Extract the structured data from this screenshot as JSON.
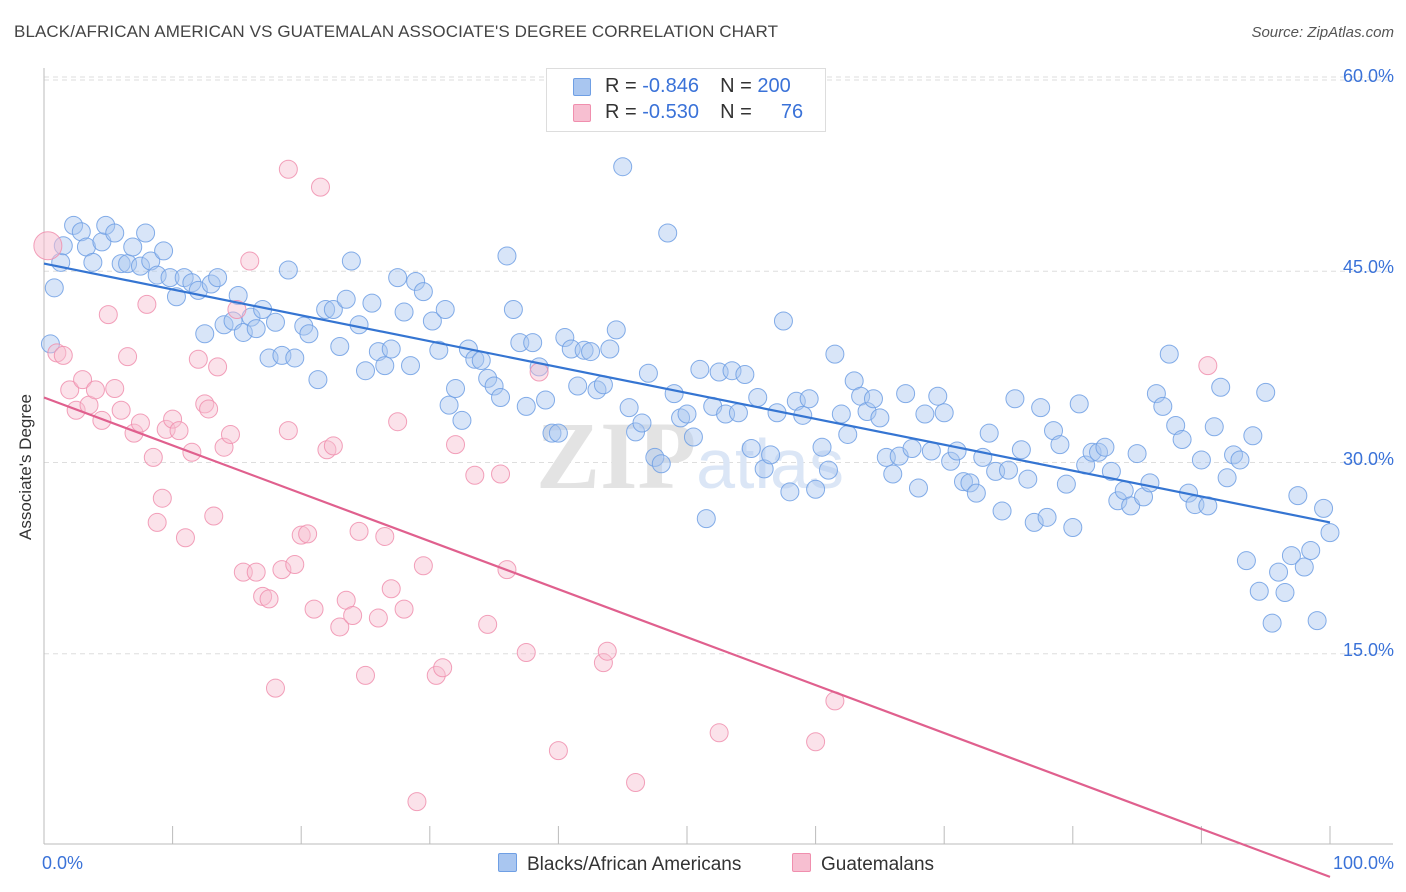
{
  "chart_data": {
    "type": "scatter",
    "title": "BLACK/AFRICAN AMERICAN VS GUATEMALAN ASSOCIATE'S DEGREE CORRELATION CHART",
    "source": "Source: ZipAtlas.com",
    "xlabel": "",
    "ylabel": "Associate's Degree",
    "xlim": [
      0,
      100
    ],
    "ylim": [
      0,
      65
    ],
    "x_tick_labels": [
      "0.0%",
      "100.0%"
    ],
    "y_ticks": [
      15,
      30,
      45,
      60
    ],
    "y_tick_labels": [
      "15.0%",
      "30.0%",
      "45.0%",
      "60.0%"
    ],
    "grid": true,
    "watermark": "ZIPatlas",
    "legend_stats": [
      {
        "r_label": "R =",
        "r_value": "-0.846",
        "n_label": "N =",
        "n_value": "200"
      },
      {
        "r_label": "R =",
        "r_value": "-0.530",
        "n_label": "N =",
        "n_value": "76"
      }
    ],
    "series": [
      {
        "name": "Blacks/African Americans",
        "color": "#6f9fe4",
        "fill": "#a9c6f0",
        "line_color": "#3575d2",
        "trend": [
          [
            0,
            45.6
          ],
          [
            100,
            25.3
          ]
        ],
        "points": [
          [
            0.5,
            39.3
          ],
          [
            0.8,
            43.7
          ],
          [
            1.3,
            45.7
          ],
          [
            1.5,
            47.0
          ],
          [
            2.3,
            48.6
          ],
          [
            2.9,
            48.1
          ],
          [
            3.3,
            46.9
          ],
          [
            3.8,
            45.7
          ],
          [
            4.5,
            47.3
          ],
          [
            4.8,
            48.6
          ],
          [
            5.5,
            48.0
          ],
          [
            6.0,
            45.6
          ],
          [
            6.5,
            45.6
          ],
          [
            6.9,
            46.9
          ],
          [
            7.5,
            45.4
          ],
          [
            7.9,
            48.0
          ],
          [
            8.3,
            45.8
          ],
          [
            8.8,
            44.7
          ],
          [
            9.3,
            46.6
          ],
          [
            9.8,
            44.5
          ],
          [
            10.3,
            43.0
          ],
          [
            10.9,
            44.5
          ],
          [
            11.5,
            44.1
          ],
          [
            12.0,
            43.5
          ],
          [
            12.5,
            40.1
          ],
          [
            13.0,
            44.0
          ],
          [
            13.5,
            44.5
          ],
          [
            14.0,
            40.8
          ],
          [
            14.7,
            41.1
          ],
          [
            15.1,
            43.1
          ],
          [
            15.5,
            40.2
          ],
          [
            16.1,
            41.4
          ],
          [
            16.5,
            40.5
          ],
          [
            17.0,
            42.0
          ],
          [
            17.5,
            38.2
          ],
          [
            18.0,
            41.0
          ],
          [
            18.5,
            38.4
          ],
          [
            19.0,
            45.1
          ],
          [
            19.5,
            38.2
          ],
          [
            20.2,
            40.7
          ],
          [
            20.6,
            40.1
          ],
          [
            21.3,
            36.5
          ],
          [
            21.9,
            42.0
          ],
          [
            22.5,
            42.0
          ],
          [
            23.0,
            39.1
          ],
          [
            23.5,
            42.8
          ],
          [
            23.9,
            45.8
          ],
          [
            24.5,
            40.8
          ],
          [
            25.0,
            37.2
          ],
          [
            25.5,
            42.5
          ],
          [
            26.0,
            38.7
          ],
          [
            26.5,
            37.6
          ],
          [
            27.0,
            38.9
          ],
          [
            27.5,
            44.5
          ],
          [
            28.0,
            41.8
          ],
          [
            28.5,
            37.6
          ],
          [
            28.9,
            44.2
          ],
          [
            29.5,
            43.4
          ],
          [
            30.2,
            41.1
          ],
          [
            30.7,
            38.8
          ],
          [
            31.2,
            42.0
          ],
          [
            31.5,
            34.5
          ],
          [
            32.0,
            35.8
          ],
          [
            32.5,
            33.3
          ],
          [
            33.0,
            38.9
          ],
          [
            33.5,
            38.1
          ],
          [
            34.0,
            38.0
          ],
          [
            34.5,
            36.6
          ],
          [
            35.0,
            36.0
          ],
          [
            35.5,
            35.1
          ],
          [
            36.0,
            46.2
          ],
          [
            36.5,
            42.0
          ],
          [
            37.0,
            39.4
          ],
          [
            37.5,
            34.4
          ],
          [
            38.0,
            39.4
          ],
          [
            38.5,
            37.5
          ],
          [
            39.0,
            34.9
          ],
          [
            39.5,
            32.3
          ],
          [
            40.0,
            32.3
          ],
          [
            40.5,
            39.8
          ],
          [
            41.0,
            38.9
          ],
          [
            41.5,
            36.0
          ],
          [
            42.0,
            38.8
          ],
          [
            42.5,
            38.7
          ],
          [
            43.0,
            35.7
          ],
          [
            43.5,
            36.1
          ],
          [
            44.0,
            38.9
          ],
          [
            44.5,
            40.4
          ],
          [
            45.0,
            53.2
          ],
          [
            45.5,
            34.3
          ],
          [
            46.0,
            32.4
          ],
          [
            46.5,
            33.1
          ],
          [
            47.0,
            37.0
          ],
          [
            47.5,
            30.4
          ],
          [
            48.0,
            29.9
          ],
          [
            48.5,
            48.0
          ],
          [
            49.0,
            35.4
          ],
          [
            49.5,
            33.5
          ],
          [
            50.0,
            33.8
          ],
          [
            50.5,
            32.0
          ],
          [
            51.0,
            37.3
          ],
          [
            51.5,
            25.6
          ],
          [
            52.0,
            34.4
          ],
          [
            52.5,
            37.1
          ],
          [
            53.0,
            33.8
          ],
          [
            53.5,
            37.2
          ],
          [
            54.0,
            33.9
          ],
          [
            54.5,
            36.9
          ],
          [
            55.0,
            31.1
          ],
          [
            55.5,
            35.1
          ],
          [
            56.0,
            29.5
          ],
          [
            56.5,
            30.6
          ],
          [
            57.0,
            33.9
          ],
          [
            57.5,
            41.1
          ],
          [
            58.0,
            27.7
          ],
          [
            58.5,
            34.8
          ],
          [
            59.0,
            33.7
          ],
          [
            59.5,
            35.0
          ],
          [
            60.0,
            27.9
          ],
          [
            60.5,
            31.2
          ],
          [
            61.0,
            29.4
          ],
          [
            61.5,
            38.5
          ],
          [
            62.0,
            33.8
          ],
          [
            62.5,
            32.2
          ],
          [
            63.0,
            36.4
          ],
          [
            63.5,
            35.2
          ],
          [
            64.0,
            34.0
          ],
          [
            64.5,
            35.0
          ],
          [
            65.0,
            33.5
          ],
          [
            65.5,
            30.4
          ],
          [
            66.0,
            29.1
          ],
          [
            66.5,
            30.5
          ],
          [
            67.0,
            35.4
          ],
          [
            67.5,
            31.1
          ],
          [
            68.0,
            28.0
          ],
          [
            68.5,
            33.8
          ],
          [
            69.0,
            30.9
          ],
          [
            69.5,
            35.2
          ],
          [
            70.0,
            33.9
          ],
          [
            70.5,
            30.1
          ],
          [
            71.0,
            30.9
          ],
          [
            71.5,
            28.5
          ],
          [
            72.0,
            28.4
          ],
          [
            72.5,
            27.6
          ],
          [
            73.0,
            30.4
          ],
          [
            73.5,
            32.3
          ],
          [
            74.0,
            29.3
          ],
          [
            74.5,
            26.2
          ],
          [
            75.0,
            29.4
          ],
          [
            75.5,
            35.0
          ],
          [
            76.0,
            31.0
          ],
          [
            76.5,
            28.7
          ],
          [
            77.0,
            25.3
          ],
          [
            77.5,
            34.3
          ],
          [
            78.0,
            25.7
          ],
          [
            78.5,
            32.5
          ],
          [
            79.0,
            31.4
          ],
          [
            79.5,
            28.3
          ],
          [
            80.0,
            24.9
          ],
          [
            80.5,
            34.6
          ],
          [
            81.0,
            29.8
          ],
          [
            81.5,
            30.8
          ],
          [
            82.0,
            30.8
          ],
          [
            82.5,
            31.2
          ],
          [
            83.0,
            29.3
          ],
          [
            83.5,
            27.0
          ],
          [
            84.0,
            27.8
          ],
          [
            84.5,
            26.6
          ],
          [
            85.0,
            30.7
          ],
          [
            85.5,
            27.3
          ],
          [
            86.0,
            28.4
          ],
          [
            86.5,
            35.4
          ],
          [
            87.0,
            34.4
          ],
          [
            87.5,
            38.5
          ],
          [
            88.0,
            32.9
          ],
          [
            88.5,
            31.8
          ],
          [
            89.0,
            27.6
          ],
          [
            89.5,
            26.7
          ],
          [
            90.0,
            30.2
          ],
          [
            90.5,
            26.6
          ],
          [
            91.0,
            32.8
          ],
          [
            91.5,
            35.9
          ],
          [
            92.0,
            28.8
          ],
          [
            92.5,
            30.6
          ],
          [
            93.0,
            30.2
          ],
          [
            93.5,
            22.3
          ],
          [
            94.0,
            32.1
          ],
          [
            94.5,
            19.9
          ],
          [
            95.0,
            35.5
          ],
          [
            95.5,
            17.4
          ],
          [
            96.0,
            21.4
          ],
          [
            96.5,
            19.8
          ],
          [
            97.0,
            22.7
          ],
          [
            97.5,
            27.4
          ],
          [
            98.0,
            21.8
          ],
          [
            98.5,
            23.1
          ],
          [
            99.0,
            17.6
          ],
          [
            99.5,
            26.4
          ],
          [
            100.0,
            24.5
          ]
        ]
      },
      {
        "name": "Guatemalans",
        "color": "#f08fae",
        "fill": "#f7bfd1",
        "line_color": "#e0608e",
        "trend": [
          [
            0,
            35.1
          ],
          [
            100,
            -2.5
          ]
        ],
        "points": [
          [
            0.3,
            47.0
          ],
          [
            1.0,
            38.6
          ],
          [
            1.5,
            38.4
          ],
          [
            2.0,
            35.7
          ],
          [
            2.5,
            34.1
          ],
          [
            3.0,
            36.5
          ],
          [
            3.5,
            34.5
          ],
          [
            4.0,
            35.7
          ],
          [
            4.5,
            33.3
          ],
          [
            5.0,
            41.6
          ],
          [
            5.5,
            35.8
          ],
          [
            6.0,
            34.1
          ],
          [
            6.5,
            38.3
          ],
          [
            7.0,
            32.3
          ],
          [
            7.5,
            33.1
          ],
          [
            8.0,
            42.4
          ],
          [
            8.5,
            30.4
          ],
          [
            8.8,
            25.3
          ],
          [
            9.2,
            27.2
          ],
          [
            9.5,
            32.6
          ],
          [
            10.0,
            33.4
          ],
          [
            10.5,
            32.5
          ],
          [
            11.0,
            24.1
          ],
          [
            11.5,
            30.8
          ],
          [
            12.0,
            38.1
          ],
          [
            12.5,
            34.6
          ],
          [
            12.8,
            34.2
          ],
          [
            13.2,
            25.8
          ],
          [
            13.5,
            37.5
          ],
          [
            14.0,
            31.2
          ],
          [
            14.5,
            32.2
          ],
          [
            15.0,
            42.0
          ],
          [
            15.5,
            21.4
          ],
          [
            16.0,
            45.8
          ],
          [
            16.5,
            21.4
          ],
          [
            17.0,
            19.5
          ],
          [
            17.5,
            19.3
          ],
          [
            18.0,
            12.3
          ],
          [
            18.5,
            21.6
          ],
          [
            19.0,
            32.5
          ],
          [
            19.5,
            22.0
          ],
          [
            19.0,
            53.0
          ],
          [
            20.0,
            24.3
          ],
          [
            20.5,
            24.4
          ],
          [
            21.0,
            18.5
          ],
          [
            21.5,
            51.6
          ],
          [
            22.0,
            31.0
          ],
          [
            22.5,
            31.3
          ],
          [
            23.0,
            17.1
          ],
          [
            23.5,
            19.2
          ],
          [
            24.0,
            18.0
          ],
          [
            24.5,
            24.6
          ],
          [
            25.0,
            13.3
          ],
          [
            26.0,
            17.8
          ],
          [
            26.5,
            24.2
          ],
          [
            27.0,
            20.1
          ],
          [
            27.5,
            33.2
          ],
          [
            28.0,
            18.5
          ],
          [
            29.0,
            3.4
          ],
          [
            29.5,
            21.9
          ],
          [
            30.5,
            13.3
          ],
          [
            31.0,
            13.9
          ],
          [
            32.0,
            31.4
          ],
          [
            33.5,
            29.0
          ],
          [
            34.5,
            17.3
          ],
          [
            35.5,
            29.1
          ],
          [
            36.0,
            21.6
          ],
          [
            37.5,
            15.1
          ],
          [
            38.5,
            37.1
          ],
          [
            40.0,
            7.4
          ],
          [
            43.5,
            14.3
          ],
          [
            43.8,
            15.2
          ],
          [
            46.0,
            4.9
          ],
          [
            52.5,
            8.8
          ],
          [
            60.0,
            8.1
          ],
          [
            61.5,
            11.3
          ],
          [
            90.5,
            37.6
          ]
        ]
      }
    ]
  }
}
